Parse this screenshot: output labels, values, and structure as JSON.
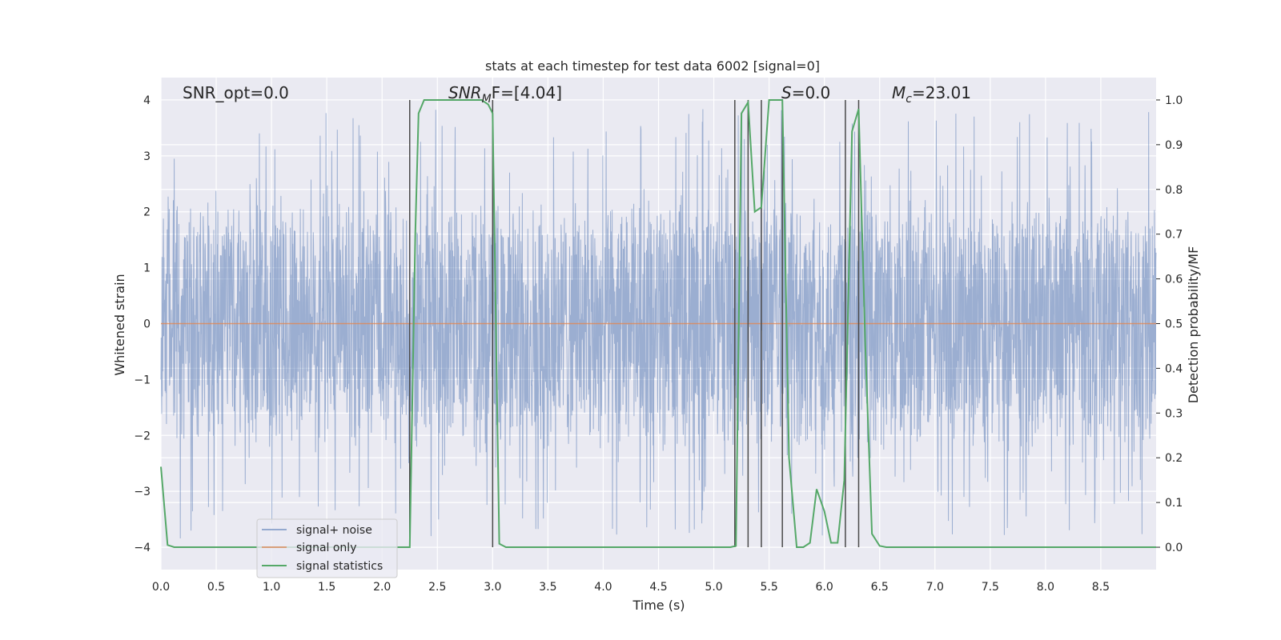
{
  "chart_data": {
    "type": "line",
    "title": "stats at each timestep for test data 6002 [signal=0]",
    "xlabel": "Time (s)",
    "ylabel": "Whitened strain",
    "y2label": "Detection probability/MF",
    "xlim": [
      0,
      9.0
    ],
    "ylim": [
      -4.4,
      4.4
    ],
    "y2lim": [
      -0.05,
      1.05
    ],
    "xticks": [
      "0.0",
      "0.5",
      "1.0",
      "1.5",
      "2.0",
      "2.5",
      "3.0",
      "3.5",
      "4.0",
      "4.5",
      "5.0",
      "5.5",
      "6.0",
      "6.5",
      "7.0",
      "7.5",
      "8.0",
      "8.5"
    ],
    "yticks": [
      "−4",
      "−3",
      "−2",
      "−1",
      "0",
      "1",
      "2",
      "3",
      "4"
    ],
    "y2ticks": [
      "0.0",
      "0.1",
      "0.2",
      "0.3",
      "0.4",
      "0.5",
      "0.6",
      "0.7",
      "0.8",
      "0.9",
      "1.0"
    ],
    "grid": true,
    "legend_position": "lower-left",
    "annotations": {
      "snr_opt": "SNR_opt=0.0",
      "snr_mf_main": "SNR",
      "snr_mf_sub": "M",
      "snr_mf_rest": "F=[4.04]",
      "s_main": "S",
      "s_rest": "=0.0",
      "mc_main": "M",
      "mc_sub": "c",
      "mc_rest": "=23.01"
    },
    "series": [
      {
        "name": "signal+ noise",
        "color": "#4c72b0",
        "kind": "noise",
        "envelope": 2.4,
        "max_abs": 3.85
      },
      {
        "name": "signal only",
        "color": "#dd8452",
        "kind": "line",
        "value": 0.0
      },
      {
        "name": "signal statistics",
        "color": "#55a868",
        "axis": "right",
        "x": [
          0.0,
          0.06,
          0.12,
          0.5,
          1.0,
          1.5,
          2.0,
          2.25,
          2.3,
          2.33,
          2.38,
          2.5,
          2.7,
          2.9,
          2.96,
          3.0,
          3.06,
          3.12,
          3.5,
          4.0,
          4.5,
          5.0,
          5.15,
          5.2,
          5.25,
          5.31,
          5.37,
          5.43,
          5.5,
          5.56,
          5.62,
          5.68,
          5.75,
          5.81,
          5.87,
          5.93,
          6.0,
          6.06,
          6.12,
          6.18,
          6.25,
          6.31,
          6.37,
          6.43,
          6.5,
          6.56,
          7.0,
          7.5,
          8.0,
          8.5,
          9.0
        ],
        "values": [
          0.18,
          0.005,
          0.0,
          0.0,
          0.0,
          0.0,
          0.0,
          0.0,
          0.7,
          0.97,
          1.0,
          1.0,
          1.0,
          1.0,
          0.99,
          0.97,
          0.008,
          0.0,
          0.0,
          0.0,
          0.0,
          0.0,
          0.0,
          0.003,
          0.97,
          0.995,
          0.75,
          0.76,
          1.0,
          1.0,
          1.0,
          0.2,
          0.0,
          0.0,
          0.01,
          0.13,
          0.08,
          0.01,
          0.01,
          0.15,
          0.93,
          0.98,
          0.45,
          0.03,
          0.003,
          0.0,
          0.0,
          0.0,
          0.0,
          0.0,
          0.0
        ]
      }
    ],
    "vlines": [
      2.25,
      3.0,
      5.19,
      5.31,
      5.43,
      5.62,
      6.19,
      6.31
    ]
  }
}
